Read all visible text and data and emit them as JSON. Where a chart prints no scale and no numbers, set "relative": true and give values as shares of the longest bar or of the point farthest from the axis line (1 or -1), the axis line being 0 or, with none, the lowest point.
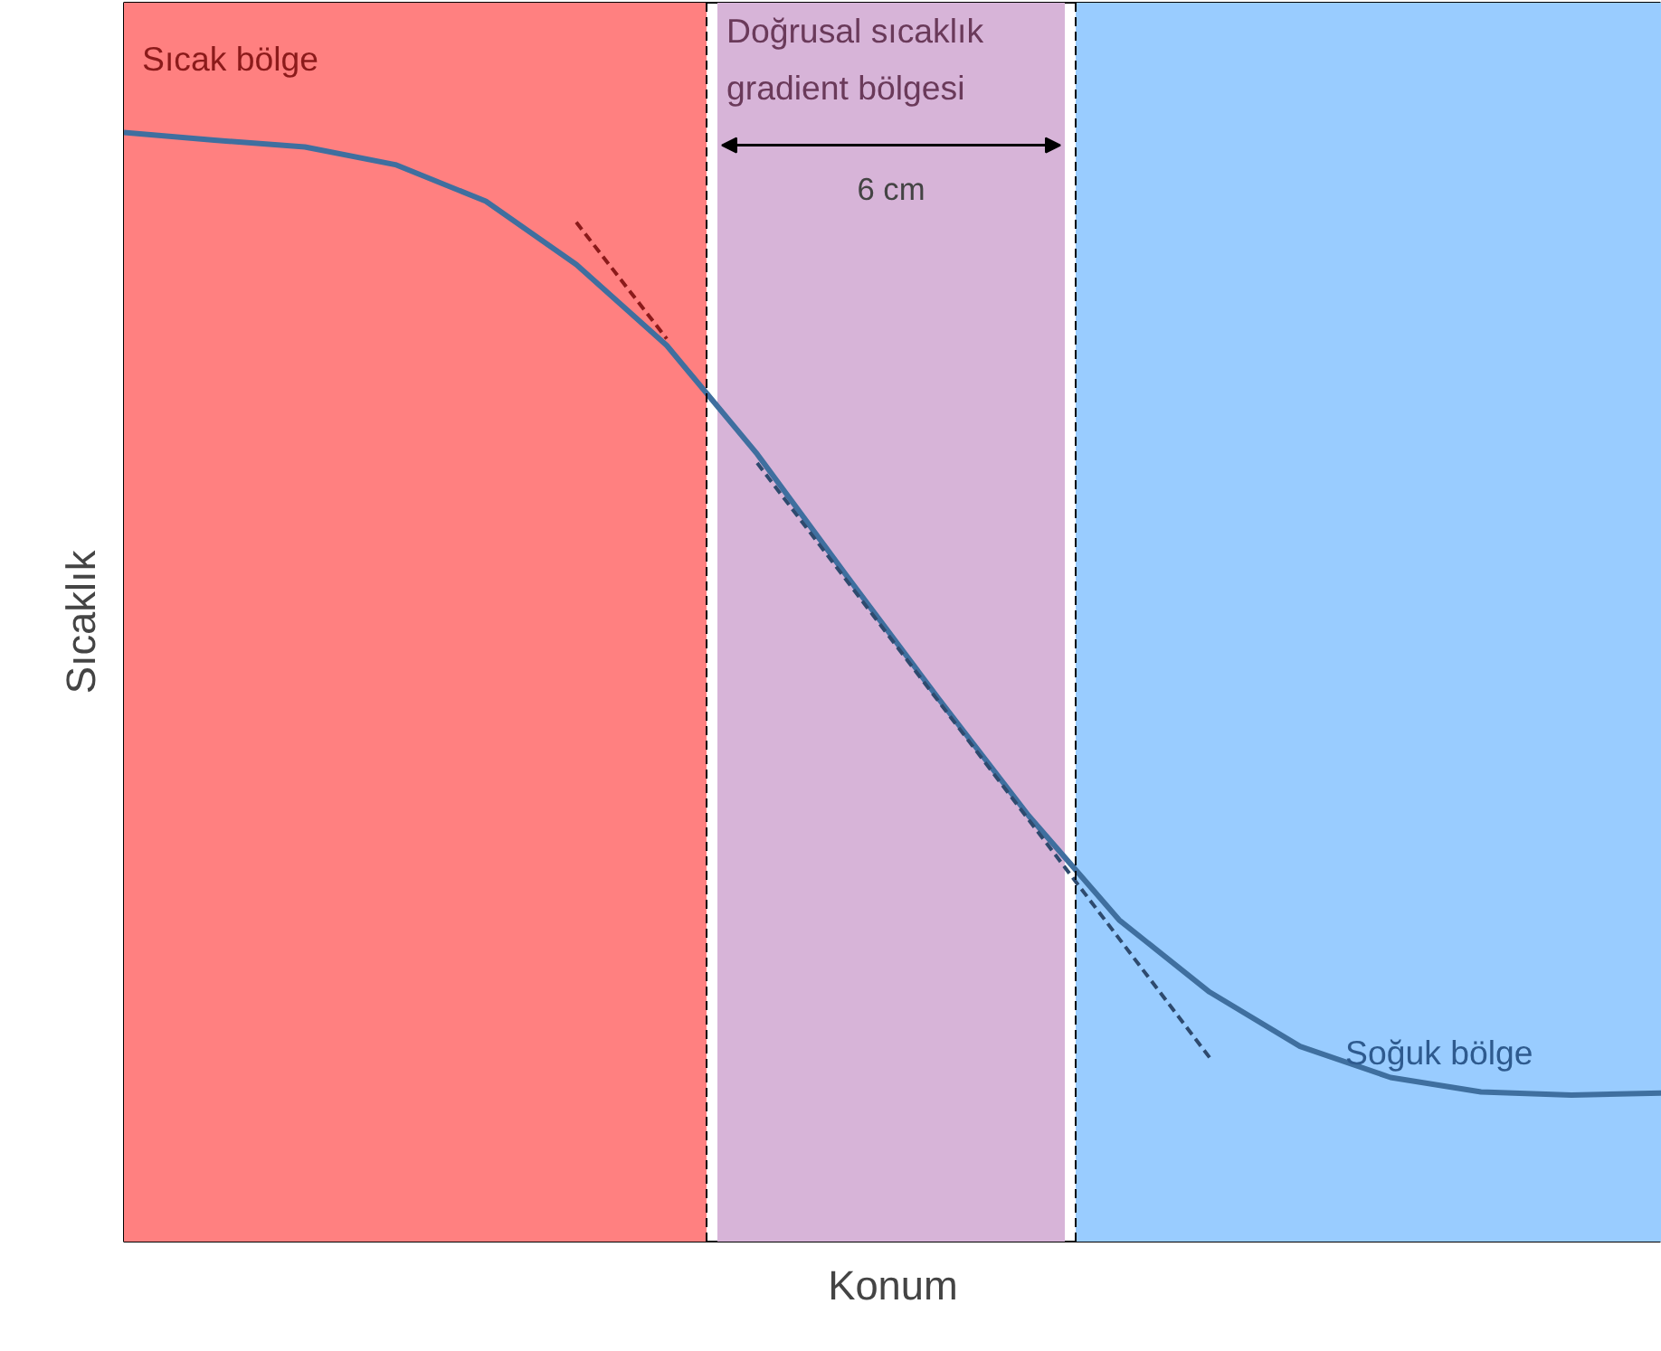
{
  "chart_data": {
    "type": "line",
    "relative": true,
    "xlabel": "Konum",
    "ylabel": "Sıcaklık",
    "tick_labels": false,
    "grid": false,
    "categories": [
      null,
      null,
      null,
      null,
      null,
      null,
      null,
      null,
      null,
      null,
      null,
      null,
      null,
      null,
      null,
      null,
      null,
      null
    ],
    "series": [
      {
        "color": "#3f6f9f",
        "values": [
          1.0,
          0.993,
          0.987,
          0.971,
          0.938,
          0.881,
          0.808,
          0.71,
          0.599,
          0.49,
          0.384,
          0.29,
          0.225,
          0.176,
          0.148,
          0.135,
          0.132,
          0.134
        ]
      },
      {
        "type": "line",
        "line_style": "dashed",
        "color": "#8b1a1a",
        "values": [
          null,
          null,
          null,
          null,
          null,
          0.919,
          0.814,
          null,
          null,
          null,
          null,
          null,
          null,
          null,
          null,
          null,
          null,
          null
        ]
      },
      {
        "type": "line",
        "line_style": "dashed",
        "color": "#2e4a6e",
        "values": [
          null,
          null,
          null,
          null,
          null,
          null,
          null,
          0.702,
          null,
          null,
          null,
          null,
          0.166,
          null,
          null,
          null,
          null,
          null
        ]
      }
    ],
    "annotations": [
      "Sıcak bölge",
      "Doğrusal sıcaklık gradient bölgesi",
      "6 cm",
      "Soğuk bölge"
    ]
  }
}
